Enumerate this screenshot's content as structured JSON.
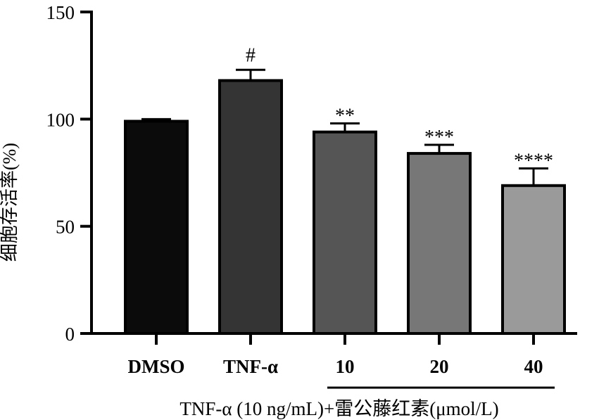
{
  "chart_data": {
    "type": "bar",
    "categories": [
      "DMSO",
      "TNF-α",
      "10",
      "20",
      "40"
    ],
    "values": [
      99,
      118,
      94,
      84,
      69
    ],
    "errors": [
      1,
      5,
      4,
      4,
      8
    ],
    "significance": [
      "",
      "#",
      "**",
      "***",
      "****"
    ],
    "colors": [
      "#0b0b0b",
      "#343434",
      "#555555",
      "#777777",
      "#9a9a9a"
    ],
    "ylabel": "细胞存活率(%)",
    "xlabel": "TNF-α (10 ng/mL)+雷公藤红素(μmol/L)",
    "yticks": [
      0,
      50,
      100,
      150
    ],
    "ylim": [
      0,
      150
    ],
    "grid": false,
    "legend": "none"
  }
}
